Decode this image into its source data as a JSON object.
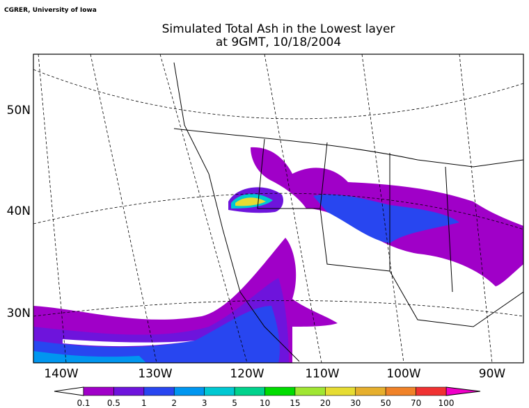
{
  "header": {
    "credit": "CGRER, University of Iowa",
    "title": "Simulated Total Ash in the Lowest layer",
    "subtitle": "at 9GMT, 10/18/2004"
  },
  "map": {
    "lat_labels": [
      "50N",
      "40N",
      "30N"
    ],
    "lon_labels": [
      "140W",
      "130W",
      "120W",
      "110W",
      "100W",
      "90W"
    ]
  },
  "legend": {
    "labels": [
      "0.1",
      "0.5",
      "1",
      "2",
      "3",
      "5",
      "10",
      "15",
      "20",
      "30",
      "50",
      "70",
      "100"
    ],
    "colors": [
      "#a000c8",
      "#6e14dc",
      "#2846f0",
      "#0096f0",
      "#00c8d2",
      "#00d28c",
      "#00dc00",
      "#a0e632",
      "#e6dc32",
      "#e6af2d",
      "#f08228",
      "#f03232"
    ],
    "under_color": "#ffffff",
    "over_color": "#f000c8"
  }
}
